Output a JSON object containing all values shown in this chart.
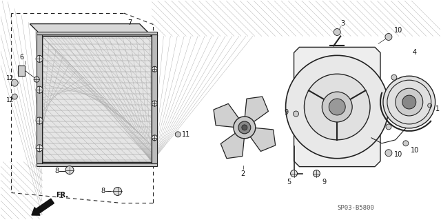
{
  "bg_color": "#ffffff",
  "part_code": "SP03-B5800",
  "fig_width": 6.4,
  "fig_height": 3.19,
  "dpi": 100,
  "lc": "#222222",
  "tc": "#111111"
}
